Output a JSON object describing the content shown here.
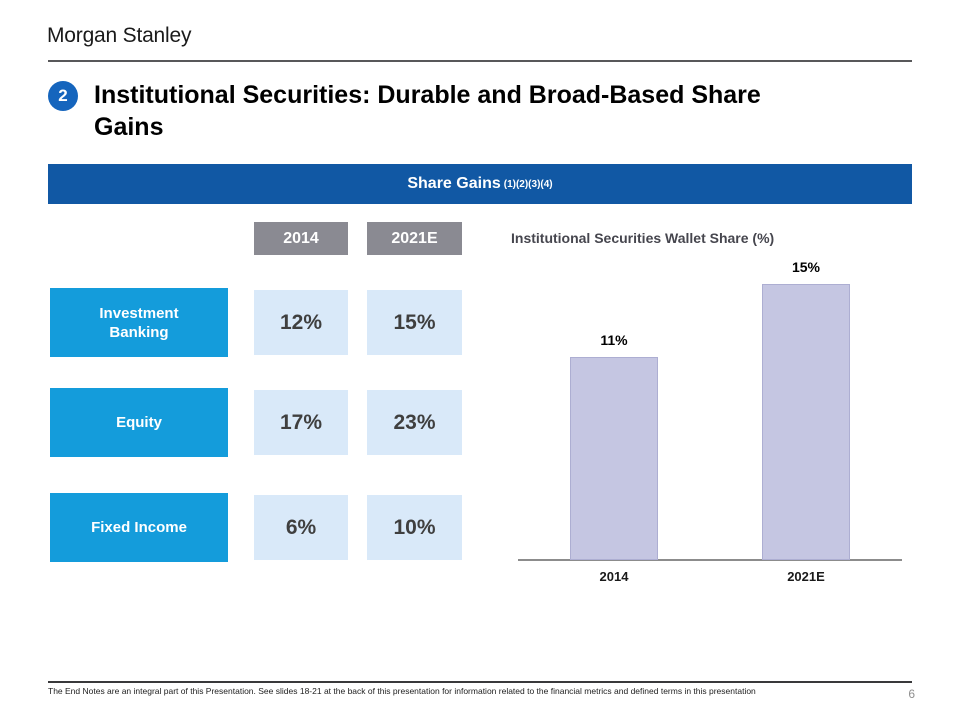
{
  "brand": {
    "logo_text": "Morgan Stanley"
  },
  "header": {
    "badge_number": "2",
    "title_lines": [
      "Institutional Securities: Durable and Broad-Based Share",
      "Gains"
    ]
  },
  "banner": {
    "label": "Share Gains",
    "footnote_refs": "(1)(2)(3)(4)"
  },
  "share_table": {
    "columns": [
      "2014",
      "2021E"
    ],
    "rows": [
      {
        "label": "Investment Banking",
        "values": [
          "12%",
          "15%"
        ]
      },
      {
        "label": "Equity",
        "values": [
          "17%",
          "23%"
        ]
      },
      {
        "label": "Fixed Income",
        "values": [
          "6%",
          "10%"
        ]
      }
    ]
  },
  "chart_data": {
    "type": "bar",
    "title": "Institutional Securities Wallet Share (%)",
    "categories": [
      "2014",
      "2021E"
    ],
    "values": [
      11,
      15
    ],
    "data_labels": [
      "11%",
      "15%"
    ],
    "ylim": [
      0,
      16.5
    ],
    "xlabel": "",
    "ylabel": "",
    "grid": false,
    "legend": false,
    "bar_color": "#c5c6e2",
    "bar_border_color": "#adaed2"
  },
  "footer": {
    "note": "The End Notes are an integral part of this Presentation. See slides 18-21 at the back of this presentation for information related to the financial metrics and defined terms in this presentation",
    "page_number": "6"
  },
  "colors": {
    "banner_blue": "#1158a4",
    "badge_blue": "#1565bd",
    "category_cyan": "#149cdb",
    "cell_light_blue": "#d9e9f9",
    "column_header_gray": "#8a8a92"
  }
}
